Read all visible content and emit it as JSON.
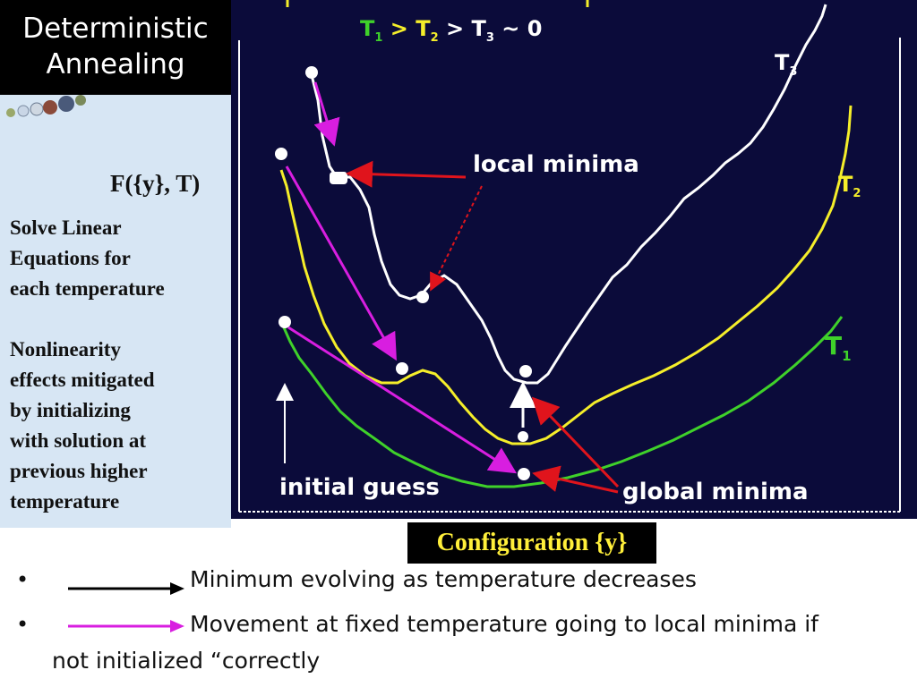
{
  "slide": {
    "title_line1": "Deterministic",
    "title_line2": "Annealing",
    "function_label": "F({y}, T)",
    "side_text_1": [
      "Solve Linear",
      "Equations for",
      "each temperature"
    ],
    "side_text_2": [
      "Nonlinearity",
      "effects mitigated",
      "by initializing",
      "with solution at",
      "previous higher",
      "temperature"
    ]
  },
  "diagram": {
    "header": {
      "t1": "T",
      "t1_sub": "1",
      "gt1": " > ",
      "t2": "T",
      "t2_sub": "2",
      "gt2": " > ",
      "t3": "T",
      "t3_sub": "3",
      "tail": " ~ 0"
    },
    "curve_labels": {
      "t3": "T",
      "t3_sub": "3",
      "t2": "T",
      "t2_sub": "2",
      "t1": "T",
      "t1_sub": "1"
    },
    "local_minima_label": "local minima",
    "global_minima_label": "global minima",
    "initial_guess_label": "initial guess",
    "x_axis_label": "Configuration {y}",
    "colors": {
      "background": "#0b0b3a",
      "t3_curve": "#ffffff",
      "t2_curve": "#f5ee2a",
      "t1_curve": "#3fd12a",
      "local_arrow": "#e0141c",
      "fixed_temp_arrow": "#d81ee0",
      "evolve_arrow": "#ffffff"
    }
  },
  "legend": {
    "bullet": "•",
    "item1": "Minimum evolving as temperature decreases",
    "item2_line1": "Movement at fixed temperature going to local minima if",
    "item2_line2": "not initialized “correctly"
  }
}
